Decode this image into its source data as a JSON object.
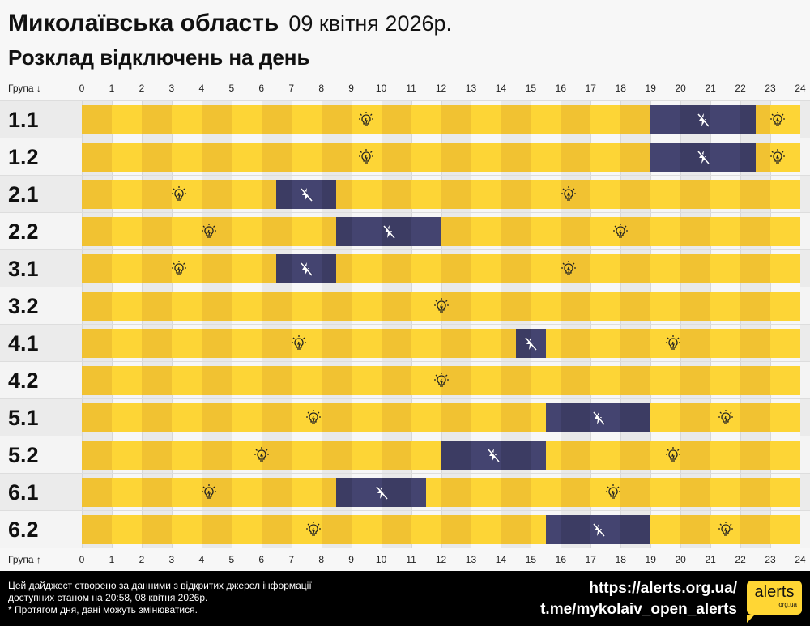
{
  "header": {
    "region": "Миколаївська область",
    "date": "09 квітня 2026р.",
    "subtitle": "Розклад відключень на день"
  },
  "axis": {
    "top_label": "Група ↓",
    "bottom_label": "Група ↑",
    "ticks": [
      "0",
      "1",
      "2",
      "3",
      "4",
      "5",
      "6",
      "7",
      "8",
      "9",
      "10",
      "11",
      "12",
      "13",
      "14",
      "15",
      "16",
      "17",
      "18",
      "19",
      "20",
      "21",
      "22",
      "23",
      "24"
    ]
  },
  "colors": {
    "on_dark": "#f1c232",
    "on_light": "#fdd536",
    "off_dark": "#3c3c63",
    "off_light": "#444470"
  },
  "icons": {
    "on": "lightbulb-icon",
    "off": "no-power-icon"
  },
  "groups": [
    {
      "label": "1.1",
      "outages": [
        [
          19,
          22.5
        ]
      ]
    },
    {
      "label": "1.2",
      "outages": [
        [
          19,
          22.5
        ]
      ]
    },
    {
      "label": "2.1",
      "outages": [
        [
          6.5,
          8.5
        ]
      ]
    },
    {
      "label": "2.2",
      "outages": [
        [
          8.5,
          12
        ]
      ]
    },
    {
      "label": "3.1",
      "outages": [
        [
          6.5,
          8.5
        ]
      ]
    },
    {
      "label": "3.2",
      "outages": []
    },
    {
      "label": "4.1",
      "outages": [
        [
          14.5,
          15.5
        ]
      ]
    },
    {
      "label": "4.2",
      "outages": []
    },
    {
      "label": "5.1",
      "outages": [
        [
          15.5,
          19
        ]
      ]
    },
    {
      "label": "5.2",
      "outages": [
        [
          12,
          15.5
        ]
      ]
    },
    {
      "label": "6.1",
      "outages": [
        [
          8.5,
          11.5
        ]
      ]
    },
    {
      "label": "6.2",
      "outages": [
        [
          15.5,
          19
        ]
      ]
    }
  ],
  "footer": {
    "note1": "Цей дайджест створено за данними з відкритих джерел інформації",
    "note2": "доступних станом на 20:58, 08 квітня 2026р.",
    "note3": "* Протягом дня, дані можуть змінюватися.",
    "link1": "https://alerts.org.ua/",
    "link2": "t.me/mykolaiv_open_alerts",
    "logo_main": "alerts",
    "logo_sub": "org.ua"
  }
}
